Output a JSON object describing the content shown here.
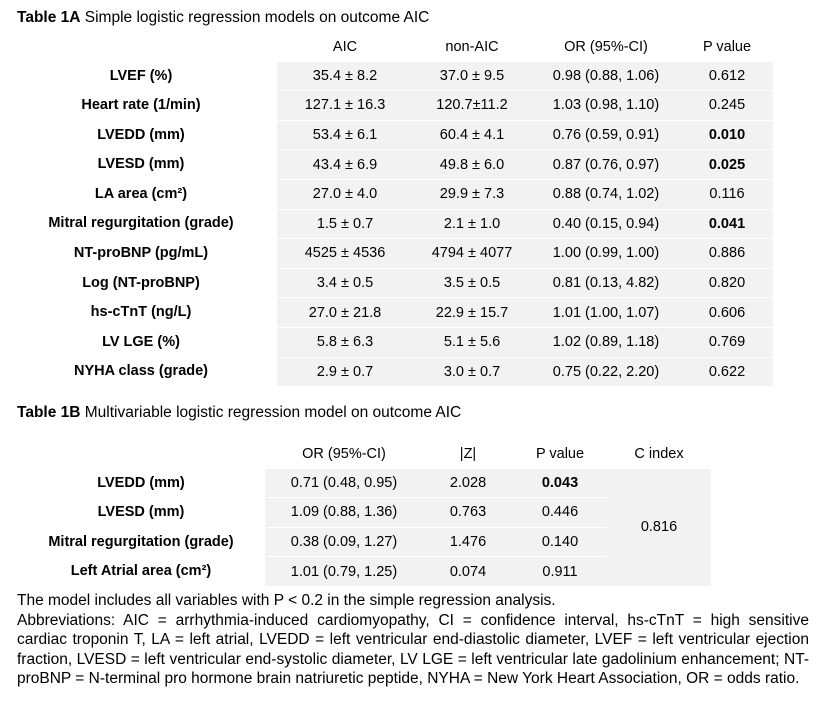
{
  "table1a": {
    "caption_bold": "Table 1A",
    "caption_rest": " Simple logistic regression models on outcome AIC",
    "headers": [
      "",
      "AIC",
      "non-AIC",
      "OR (95%-CI)",
      "P value"
    ],
    "rows": [
      {
        "label": "LVEF (%)",
        "aic": "35.4 ± 8.2",
        "non_aic": "37.0 ± 9.5",
        "or": "0.98 (0.88, 1.06)",
        "p": "0.612",
        "p_bold": false
      },
      {
        "label": "Heart rate (1/min)",
        "aic": "127.1 ± 16.3",
        "non_aic": "120.7±11.2",
        "or": "1.03 (0.98, 1.10)",
        "p": "0.245",
        "p_bold": false
      },
      {
        "label": "LVEDD (mm)",
        "aic": "53.4 ± 6.1",
        "non_aic": "60.4 ± 4.1",
        "or": "0.76 (0.59, 0.91)",
        "p": "0.010",
        "p_bold": true
      },
      {
        "label": "LVESD (mm)",
        "aic": "43.4 ± 6.9",
        "non_aic": "49.8 ± 6.0",
        "or": "0.87 (0.76, 0.97)",
        "p": "0.025",
        "p_bold": true
      },
      {
        "label": "LA area (cm²)",
        "aic": "27.0 ± 4.0",
        "non_aic": "29.9 ± 7.3",
        "or": "0.88 (0.74, 1.02)",
        "p": "0.116",
        "p_bold": false
      },
      {
        "label": "Mitral regurgitation (grade)",
        "aic": "1.5 ± 0.7",
        "non_aic": "2.1 ± 1.0",
        "or": "0.40 (0.15, 0.94)",
        "p": "0.041",
        "p_bold": true
      },
      {
        "label": "NT-proBNP (pg/mL)",
        "aic": "4525 ± 4536",
        "non_aic": "4794 ± 4077",
        "or": "1.00 (0.99, 1.00)",
        "p": "0.886",
        "p_bold": false
      },
      {
        "label": "Log (NT-proBNP)",
        "aic": "3.4 ± 0.5",
        "non_aic": "3.5 ± 0.5",
        "or": "0.81 (0.13, 4.82)",
        "p": "0.820",
        "p_bold": false
      },
      {
        "label": "hs-cTnT (ng/L)",
        "aic": "27.0 ± 21.8",
        "non_aic": "22.9 ± 15.7",
        "or": "1.01 (1.00, 1.07)",
        "p": "0.606",
        "p_bold": false
      },
      {
        "label": "LV LGE (%)",
        "aic": "5.8 ± 6.3",
        "non_aic": "5.1 ± 5.6",
        "or": "1.02 (0.89, 1.18)",
        "p": "0.769",
        "p_bold": false
      },
      {
        "label": "NYHA class (grade)",
        "aic": "2.9 ± 0.7",
        "non_aic": "3.0 ± 0.7",
        "or": "0.75 (0.22, 2.20)",
        "p": "0.622",
        "p_bold": false
      }
    ]
  },
  "table1b": {
    "caption_bold": "Table 1B",
    "caption_rest": " Multivariable logistic regression model on outcome AIC",
    "headers": [
      "",
      "OR (95%-CI)",
      "|Z|",
      "P value",
      "C index"
    ],
    "c_index": "0.816",
    "rows": [
      {
        "label": "LVEDD (mm)",
        "or": "0.71 (0.48, 0.95)",
        "z": "2.028",
        "p": "0.043",
        "p_bold": true
      },
      {
        "label": "LVESD (mm)",
        "or": "1.09 (0.88, 1.36)",
        "z": "0.763",
        "p": "0.446",
        "p_bold": false
      },
      {
        "label": "Mitral regurgitation (grade)",
        "or": "0.38 (0.09, 1.27)",
        "z": "1.476",
        "p": "0.140",
        "p_bold": false
      },
      {
        "label": "Left Atrial area (cm²)",
        "or": "1.01 (0.79, 1.25)",
        "z": "0.074",
        "p": "0.911",
        "p_bold": false
      }
    ]
  },
  "footnote": {
    "line1": "The model includes all variables with P < 0.2 in the simple regression analysis.",
    "abbreviations": "Abbreviations: AIC = arrhythmia-induced cardiomyopathy, CI = confidence interval, hs-cTnT = high sensitive cardiac troponin T, LA = left atrial, LVEDD = left ventricular end-diastolic diameter, LVEF = left ventricular ejection fraction, LVESD = left ventricular end-systolic diameter, LV LGE = left ventricular late gadolinium enhancement; NT-proBNP = N-terminal pro hormone brain natriuretic peptide, NYHA = New York Heart Association, OR = odds ratio."
  }
}
